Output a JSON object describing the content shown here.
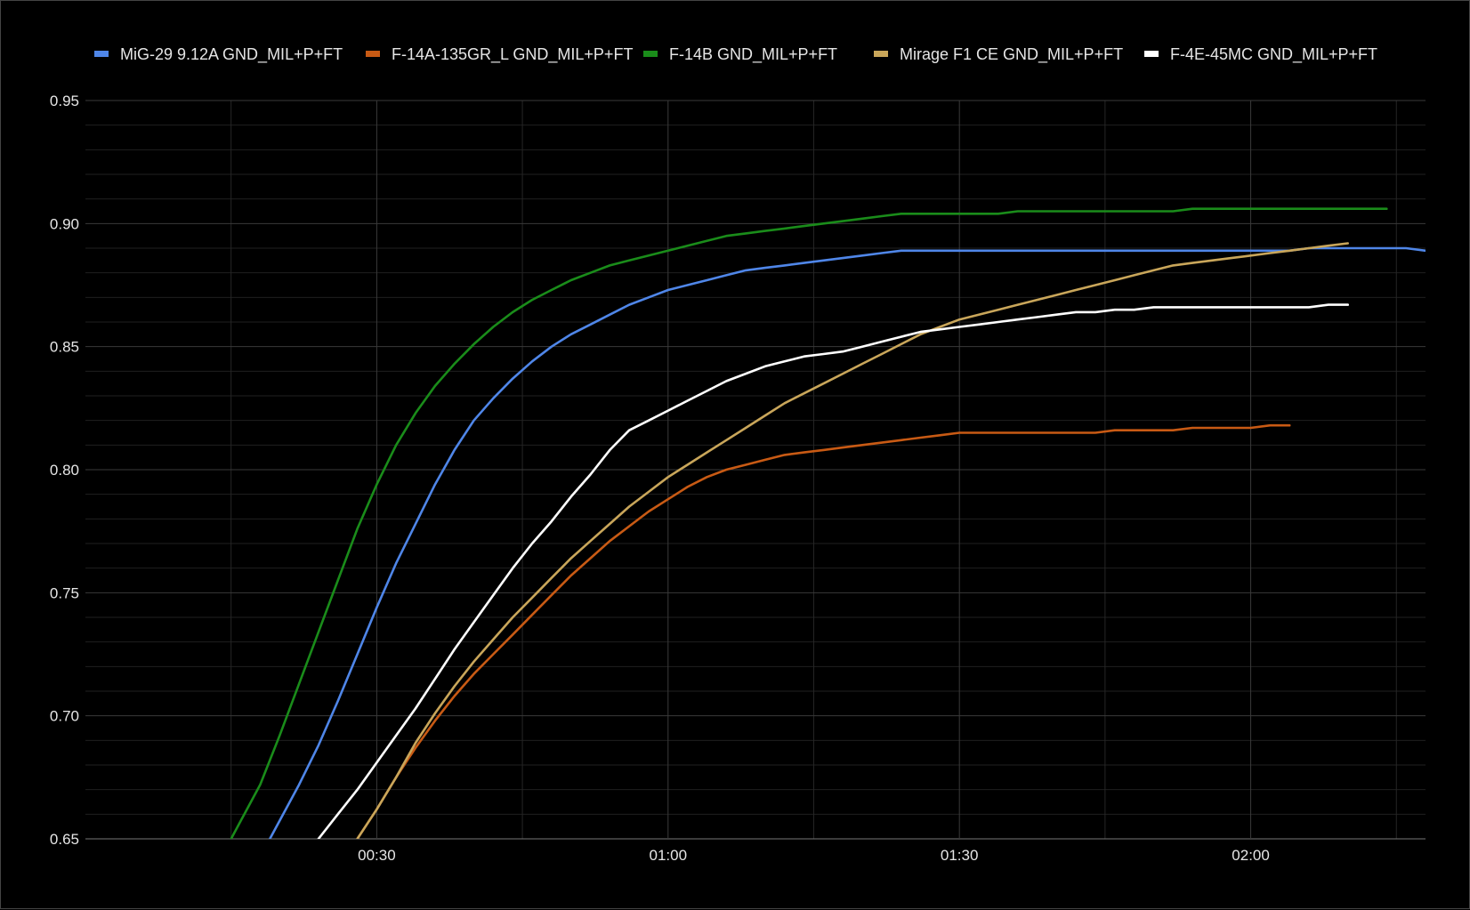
{
  "chart_data": {
    "type": "line",
    "title": "",
    "xlabel": "",
    "ylabel": "",
    "x_unit": "seconds",
    "xlim": [
      0,
      138
    ],
    "ylim": [
      0.65,
      0.95
    ],
    "x_ticks": [
      {
        "value": 30,
        "label": "00:30"
      },
      {
        "value": 60,
        "label": "01:00"
      },
      {
        "value": 90,
        "label": "01:30"
      },
      {
        "value": 120,
        "label": "02:00"
      }
    ],
    "y_ticks": [
      {
        "value": 0.65,
        "label": "0.65"
      },
      {
        "value": 0.7,
        "label": "0.70"
      },
      {
        "value": 0.75,
        "label": "0.75"
      },
      {
        "value": 0.8,
        "label": "0.80"
      },
      {
        "value": 0.85,
        "label": "0.85"
      },
      {
        "value": 0.9,
        "label": "0.90"
      },
      {
        "value": 0.95,
        "label": "0.95"
      }
    ],
    "grid": true,
    "legend_position": "top",
    "series": [
      {
        "name": "MiG-29 9.12A GND_MIL+P+FT",
        "color": "#4f86e8",
        "x": [
          19,
          22,
          24,
          26,
          28,
          30,
          32,
          34,
          36,
          38,
          40,
          42,
          44,
          46,
          48,
          50,
          52,
          54,
          56,
          58,
          60,
          62,
          64,
          66,
          68,
          70,
          72,
          74,
          76,
          78,
          80,
          82,
          84,
          86,
          88,
          90,
          92,
          94,
          96,
          98,
          100,
          102,
          104,
          106,
          108,
          110,
          112,
          114,
          116,
          118,
          120,
          122,
          124,
          126,
          128,
          130,
          132,
          134,
          136,
          138
        ],
        "y": [
          0.65,
          0.672,
          0.688,
          0.706,
          0.725,
          0.744,
          0.762,
          0.778,
          0.794,
          0.808,
          0.82,
          0.829,
          0.837,
          0.844,
          0.85,
          0.855,
          0.859,
          0.863,
          0.867,
          0.87,
          0.873,
          0.875,
          0.877,
          0.879,
          0.881,
          0.882,
          0.883,
          0.884,
          0.885,
          0.886,
          0.887,
          0.888,
          0.889,
          0.889,
          0.889,
          0.889,
          0.889,
          0.889,
          0.889,
          0.889,
          0.889,
          0.889,
          0.889,
          0.889,
          0.889,
          0.889,
          0.889,
          0.889,
          0.889,
          0.889,
          0.889,
          0.889,
          0.889,
          0.89,
          0.89,
          0.89,
          0.89,
          0.89,
          0.89,
          0.889
        ]
      },
      {
        "name": "F-14A-135GR_L GND_MIL+P+FT",
        "color": "#c85a14",
        "x": [
          28,
          30,
          32,
          34,
          36,
          38,
          40,
          42,
          44,
          46,
          48,
          50,
          52,
          54,
          56,
          58,
          60,
          62,
          64,
          66,
          68,
          70,
          72,
          74,
          76,
          78,
          80,
          82,
          84,
          86,
          88,
          90,
          92,
          94,
          96,
          98,
          100,
          102,
          104,
          106,
          108,
          110,
          112,
          114,
          116,
          118,
          120,
          122,
          124
        ],
        "y": [
          0.65,
          0.662,
          0.675,
          0.687,
          0.698,
          0.708,
          0.717,
          0.725,
          0.733,
          0.741,
          0.749,
          0.757,
          0.764,
          0.771,
          0.777,
          0.783,
          0.788,
          0.793,
          0.797,
          0.8,
          0.802,
          0.804,
          0.806,
          0.807,
          0.808,
          0.809,
          0.81,
          0.811,
          0.812,
          0.813,
          0.814,
          0.815,
          0.815,
          0.815,
          0.815,
          0.815,
          0.815,
          0.815,
          0.815,
          0.816,
          0.816,
          0.816,
          0.816,
          0.817,
          0.817,
          0.817,
          0.817,
          0.818,
          0.818
        ]
      },
      {
        "name": "F-14B GND_MIL+P+FT",
        "color": "#1a8c1a",
        "x": [
          15,
          18,
          20,
          22,
          24,
          26,
          28,
          30,
          32,
          34,
          36,
          38,
          40,
          42,
          44,
          46,
          48,
          50,
          52,
          54,
          56,
          58,
          60,
          62,
          64,
          66,
          68,
          70,
          72,
          74,
          76,
          78,
          80,
          82,
          84,
          86,
          88,
          90,
          92,
          94,
          96,
          98,
          100,
          102,
          104,
          106,
          108,
          110,
          112,
          114,
          116,
          118,
          120,
          122,
          124,
          126,
          128,
          130,
          132,
          134
        ],
        "y": [
          0.65,
          0.672,
          0.692,
          0.713,
          0.734,
          0.755,
          0.776,
          0.794,
          0.81,
          0.823,
          0.834,
          0.843,
          0.851,
          0.858,
          0.864,
          0.869,
          0.873,
          0.877,
          0.88,
          0.883,
          0.885,
          0.887,
          0.889,
          0.891,
          0.893,
          0.895,
          0.896,
          0.897,
          0.898,
          0.899,
          0.9,
          0.901,
          0.902,
          0.903,
          0.904,
          0.904,
          0.904,
          0.904,
          0.904,
          0.904,
          0.905,
          0.905,
          0.905,
          0.905,
          0.905,
          0.905,
          0.905,
          0.905,
          0.905,
          0.906,
          0.906,
          0.906,
          0.906,
          0.906,
          0.906,
          0.906,
          0.906,
          0.906,
          0.906,
          0.906
        ]
      },
      {
        "name": "Mirage F1 CE GND_MIL+P+FT",
        "color": "#c9a65a",
        "x": [
          28,
          30,
          32,
          34,
          36,
          38,
          40,
          42,
          44,
          46,
          48,
          50,
          52,
          54,
          56,
          58,
          60,
          62,
          64,
          66,
          68,
          70,
          72,
          74,
          76,
          78,
          80,
          82,
          84,
          86,
          88,
          90,
          92,
          94,
          96,
          98,
          100,
          102,
          104,
          106,
          108,
          110,
          112,
          114,
          116,
          118,
          120,
          122,
          124,
          126,
          128,
          130
        ],
        "y": [
          0.65,
          0.662,
          0.675,
          0.689,
          0.701,
          0.712,
          0.722,
          0.731,
          0.74,
          0.748,
          0.756,
          0.764,
          0.771,
          0.778,
          0.785,
          0.791,
          0.797,
          0.802,
          0.807,
          0.812,
          0.817,
          0.822,
          0.827,
          0.831,
          0.835,
          0.839,
          0.843,
          0.847,
          0.851,
          0.855,
          0.858,
          0.861,
          0.863,
          0.865,
          0.867,
          0.869,
          0.871,
          0.873,
          0.875,
          0.877,
          0.879,
          0.881,
          0.883,
          0.884,
          0.885,
          0.886,
          0.887,
          0.888,
          0.889,
          0.89,
          0.891,
          0.892
        ]
      },
      {
        "name": "F-4E-45MC GND_MIL+P+FT",
        "color": "#ffffff",
        "x": [
          24,
          26,
          28,
          30,
          32,
          34,
          36,
          38,
          40,
          42,
          44,
          46,
          48,
          50,
          52,
          54,
          56,
          58,
          60,
          62,
          64,
          66,
          68,
          70,
          72,
          74,
          76,
          78,
          80,
          82,
          84,
          86,
          88,
          90,
          92,
          94,
          96,
          98,
          100,
          102,
          104,
          106,
          108,
          110,
          112,
          114,
          116,
          118,
          120,
          122,
          124,
          126,
          128,
          130
        ],
        "y": [
          0.65,
          0.66,
          0.67,
          0.681,
          0.692,
          0.703,
          0.715,
          0.727,
          0.738,
          0.749,
          0.76,
          0.77,
          0.779,
          0.789,
          0.798,
          0.808,
          0.816,
          0.82,
          0.824,
          0.828,
          0.832,
          0.836,
          0.839,
          0.842,
          0.844,
          0.846,
          0.847,
          0.848,
          0.85,
          0.852,
          0.854,
          0.856,
          0.857,
          0.858,
          0.859,
          0.86,
          0.861,
          0.862,
          0.863,
          0.864,
          0.864,
          0.865,
          0.865,
          0.866,
          0.866,
          0.866,
          0.866,
          0.866,
          0.866,
          0.866,
          0.866,
          0.866,
          0.867,
          0.867
        ]
      }
    ]
  }
}
